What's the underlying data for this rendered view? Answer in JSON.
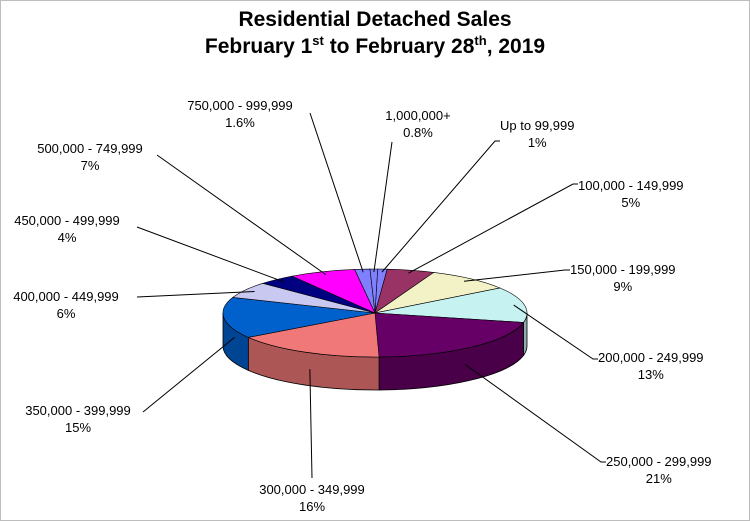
{
  "chart_data": {
    "type": "pie",
    "title": {
      "line1": "Residential Detached Sales",
      "line2_pre": "February 1",
      "line2_sup1": "st",
      "line2_mid": " to February 28",
      "line2_sup2": "th",
      "line2_post": ", 2019"
    },
    "slices": [
      {
        "label": "Up to 99,999",
        "value": 1,
        "display": "1%",
        "color": "#8080ff"
      },
      {
        "label": "100,000 - 149,999",
        "value": 5,
        "display": "5%",
        "color": "#993366"
      },
      {
        "label": "150,000 - 199,999",
        "value": 9,
        "display": "9%",
        "color": "#f2f2c6"
      },
      {
        "label": "200,000 - 249,999",
        "value": 13,
        "display": "13%",
        "color": "#c6f2f2"
      },
      {
        "label": "250,000 - 299,999",
        "value": 21,
        "display": "21%",
        "color": "#660066"
      },
      {
        "label": "300,000 - 349,999",
        "value": 16,
        "display": "16%",
        "color": "#f07878"
      },
      {
        "label": "350,000 - 399,999",
        "value": 15,
        "display": "15%",
        "color": "#0060cc"
      },
      {
        "label": "400,000 - 449,999",
        "value": 6,
        "display": "6%",
        "color": "#c8c8f0"
      },
      {
        "label": "450,000 - 499,999",
        "value": 4,
        "display": "4%",
        "color": "#000080"
      },
      {
        "label": "500,000 - 749,999",
        "value": 7,
        "display": "7%",
        "color": "#ff00ff"
      },
      {
        "label": "750,000 - 999,999",
        "value": 1.6,
        "display": "1.6%",
        "color": "#8080ff"
      },
      {
        "label": "1,000,000+",
        "value": 0.8,
        "display": "0.8%",
        "color": "#8080ff"
      }
    ]
  }
}
